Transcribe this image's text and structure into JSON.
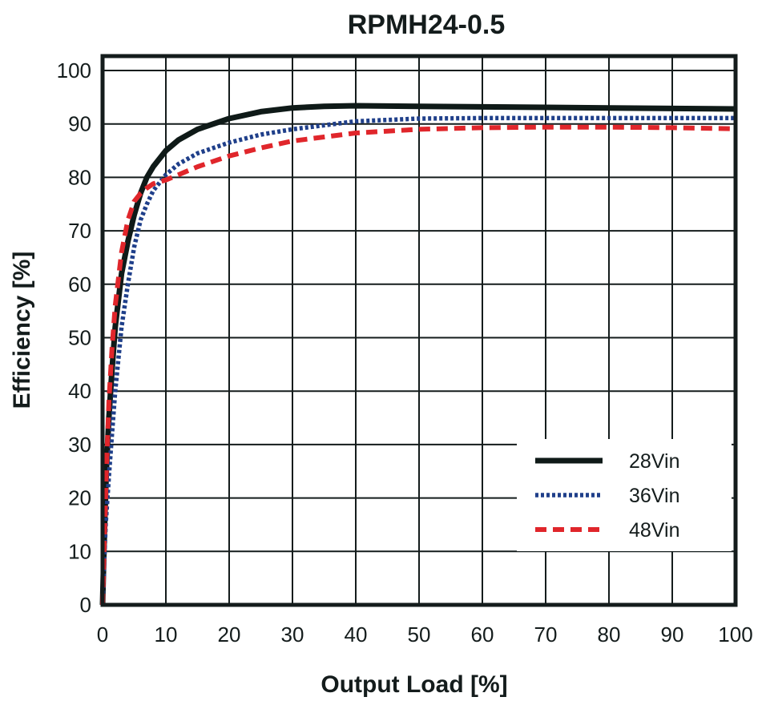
{
  "chart_data": {
    "type": "line",
    "title": "RPMH24-0.5",
    "xlabel": "Output Load [%]",
    "ylabel": "Efficiency [%]",
    "xlim": [
      0,
      100
    ],
    "ylim": [
      0,
      100
    ],
    "xticks": [
      0,
      10,
      20,
      30,
      40,
      50,
      60,
      70,
      80,
      90,
      100
    ],
    "yticks": [
      0,
      10,
      20,
      30,
      40,
      50,
      60,
      70,
      80,
      90,
      100
    ],
    "grid": true,
    "legend_position": "bottom-right",
    "series": [
      {
        "name": "28Vin",
        "color": "#0f1a18",
        "style": "solid",
        "x": [
          0,
          0.3,
          0.6,
          1,
          1.5,
          2,
          3,
          4,
          5,
          6,
          7,
          8,
          10,
          12,
          15,
          20,
          25,
          30,
          35,
          40,
          50,
          60,
          70,
          80,
          90,
          100
        ],
        "y": [
          0,
          14,
          25,
          35,
          44,
          52,
          62,
          68,
          73,
          77,
          80,
          82,
          85,
          87,
          89,
          91,
          92.3,
          93,
          93.3,
          93.4,
          93.3,
          93.2,
          93.1,
          93,
          92.9,
          92.8
        ]
      },
      {
        "name": "36Vin",
        "color": "#1f3f8a",
        "style": "dotted",
        "x": [
          0,
          0.5,
          1,
          1.5,
          2,
          3,
          4,
          5,
          6,
          7,
          8,
          10,
          12,
          15,
          20,
          25,
          30,
          40,
          50,
          60,
          70,
          80,
          90,
          100
        ],
        "y": [
          0,
          15,
          24,
          32,
          40,
          52,
          60,
          67,
          72,
          75,
          77.5,
          80.5,
          82.5,
          84.5,
          86.5,
          88,
          89,
          90.5,
          91,
          91.1,
          91.1,
          91.1,
          91.1,
          91.1
        ]
      },
      {
        "name": "48Vin",
        "color": "#e0262b",
        "style": "dashed",
        "x": [
          0,
          0.3,
          0.6,
          1,
          1.5,
          2,
          3,
          4,
          5,
          6,
          7,
          8,
          10,
          12,
          15,
          20,
          25,
          30,
          40,
          50,
          60,
          70,
          80,
          90,
          100
        ],
        "y": [
          0,
          13,
          25,
          38,
          48,
          56,
          66,
          72,
          75.5,
          77,
          78,
          78.8,
          79.5,
          80.5,
          82,
          84,
          85.5,
          86.8,
          88.3,
          89,
          89.3,
          89.4,
          89.4,
          89.3,
          89.1
        ]
      }
    ]
  }
}
